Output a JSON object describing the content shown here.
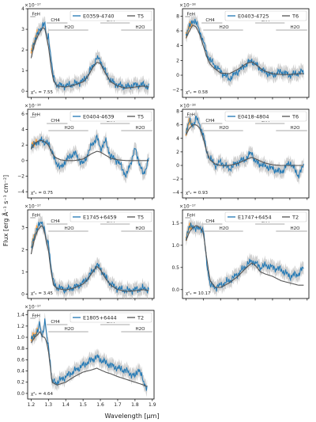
{
  "figure": {
    "xlabel": "Wavelength [μm]",
    "ylabel": "Flux [erg Å⁻¹ s⁻¹ cm⁻²]",
    "xticks": [
      "1.2",
      "1.3",
      "1.4",
      "1.5",
      "1.6",
      "1.7",
      "1.8",
      "1.9"
    ],
    "colors": {
      "observed": "#1f77b4",
      "template": "#555555",
      "error_band": "#c8c8c8",
      "overlap": "#ff9f3a"
    },
    "feature_labels": {
      "feh": "FeH",
      "ch4": "CH4",
      "h2o": "H2O"
    }
  },
  "chart_data": [
    {
      "type": "line",
      "panel": "E0359-4740",
      "multiplier": "×10⁻¹⁷",
      "ylim": [
        -0.3,
        4.0
      ],
      "yticks": [
        "0",
        "1",
        "2",
        "3",
        "4"
      ],
      "legend": {
        "object": "E0359-4740",
        "template": "T5",
        "placement": "top-right"
      },
      "chi2": "χ²ᵥ = 7.55",
      "series": [
        {
          "name": "E0359-4740",
          "x": [
            1.2,
            1.22,
            1.24,
            1.26,
            1.27,
            1.28,
            1.29,
            1.3,
            1.31,
            1.32,
            1.33,
            1.35,
            1.4,
            1.45,
            1.5,
            1.53,
            1.56,
            1.58,
            1.6,
            1.63,
            1.66,
            1.7,
            1.75,
            1.8,
            1.85,
            1.88
          ],
          "y": [
            1.8,
            2.5,
            2.8,
            3.1,
            3.3,
            3.2,
            2.5,
            2.7,
            2.0,
            1.2,
            0.6,
            0.3,
            0.25,
            0.35,
            0.5,
            0.8,
            1.3,
            1.6,
            1.5,
            0.9,
            0.5,
            0.3,
            0.2,
            0.3,
            0.3,
            0.2
          ]
        },
        {
          "name": "T5",
          "x": [
            1.2,
            1.22,
            1.24,
            1.26,
            1.27,
            1.28,
            1.29,
            1.3,
            1.31,
            1.32,
            1.33,
            1.35,
            1.4,
            1.45,
            1.5,
            1.53,
            1.56,
            1.58,
            1.6,
            1.63,
            1.66,
            1.7,
            1.75,
            1.8,
            1.85,
            1.88
          ],
          "y": [
            1.6,
            2.3,
            2.7,
            3.0,
            3.1,
            3.0,
            2.6,
            2.2,
            1.5,
            0.9,
            0.5,
            0.25,
            0.2,
            0.3,
            0.45,
            0.75,
            1.2,
            1.4,
            1.35,
            0.85,
            0.45,
            0.25,
            0.15,
            0.2,
            0.25,
            0.2
          ]
        }
      ]
    },
    {
      "type": "line",
      "panel": "E0403-4725",
      "multiplier": "×10⁻¹⁸",
      "ylim": [
        -3.0,
        9.0
      ],
      "yticks": [
        "−2",
        "0",
        "2",
        "4",
        "6",
        "8"
      ],
      "legend": {
        "object": "E0403-4725",
        "template": "T6",
        "placement": "top-right"
      },
      "chi2": "χ²ᵥ = 0.58",
      "series": [
        {
          "name": "E0403-4725",
          "x": [
            1.2,
            1.22,
            1.24,
            1.26,
            1.28,
            1.3,
            1.32,
            1.34,
            1.36,
            1.4,
            1.45,
            1.5,
            1.55,
            1.58,
            1.6,
            1.65,
            1.7,
            1.75,
            1.8,
            1.85,
            1.88
          ],
          "y": [
            5.5,
            6.5,
            7.5,
            7.0,
            6.0,
            4.5,
            3.0,
            2.0,
            1.5,
            0.5,
            -0.5,
            0.5,
            1.5,
            2.0,
            1.5,
            0.5,
            0.0,
            0.5,
            0.0,
            0.3,
            0.5
          ]
        },
        {
          "name": "T6",
          "x": [
            1.2,
            1.22,
            1.24,
            1.26,
            1.28,
            1.3,
            1.32,
            1.34,
            1.36,
            1.4,
            1.45,
            1.5,
            1.55,
            1.58,
            1.6,
            1.65,
            1.7,
            1.75,
            1.8,
            1.85,
            1.88
          ],
          "y": [
            5.0,
            6.0,
            6.8,
            6.5,
            5.5,
            4.0,
            2.5,
            1.5,
            1.0,
            0.3,
            0.2,
            0.8,
            1.6,
            1.8,
            1.5,
            0.6,
            0.2,
            0.1,
            0.1,
            0.2,
            0.2
          ]
        }
      ]
    },
    {
      "type": "line",
      "panel": "E0404-4639",
      "multiplier": "×10⁻¹⁸",
      "ylim": [
        -4.8,
        6.6
      ],
      "yticks": [
        "−4",
        "−2",
        "0",
        "2",
        "4",
        "6"
      ],
      "legend": {
        "object": "E0404-4639",
        "template": "T5",
        "placement": "top-right"
      },
      "chi2": "χ²ᵥ = 0.75",
      "series": [
        {
          "name": "E0404-4639",
          "x": [
            1.2,
            1.22,
            1.24,
            1.26,
            1.28,
            1.3,
            1.32,
            1.34,
            1.37,
            1.4,
            1.45,
            1.5,
            1.55,
            1.58,
            1.6,
            1.63,
            1.66,
            1.7,
            1.75,
            1.8,
            1.85,
            1.88
          ],
          "y": [
            1.5,
            2.5,
            2.0,
            3.0,
            2.0,
            2.5,
            1.0,
            0.0,
            -1.0,
            0.0,
            1.0,
            -0.5,
            2.0,
            3.0,
            1.5,
            2.5,
            0.5,
            0.0,
            -2.0,
            1.5,
            -2.0,
            0.5
          ]
        },
        {
          "name": "T5",
          "x": [
            1.2,
            1.22,
            1.24,
            1.26,
            1.28,
            1.3,
            1.32,
            1.34,
            1.37,
            1.4,
            1.45,
            1.5,
            1.55,
            1.58,
            1.6,
            1.63,
            1.66,
            1.7,
            1.75,
            1.8,
            1.85,
            1.88
          ],
          "y": [
            1.5,
            2.2,
            2.5,
            2.6,
            2.4,
            2.0,
            1.0,
            0.4,
            0.1,
            0.0,
            0.0,
            0.2,
            0.9,
            1.2,
            1.1,
            0.7,
            0.3,
            0.1,
            0.0,
            0.0,
            0.0,
            0.0
          ]
        }
      ]
    },
    {
      "type": "line",
      "panel": "E0418-4804",
      "multiplier": "×10⁻¹⁸",
      "ylim": [
        -4.8,
        8.3
      ],
      "yticks": [
        "−4",
        "−2",
        "0",
        "2",
        "4",
        "6",
        "8"
      ],
      "legend": {
        "object": "E0418-4804",
        "template": "T6",
        "placement": "top-right"
      },
      "chi2": "χ²ᵥ = 0.93",
      "series": [
        {
          "name": "E0418-4804",
          "x": [
            1.2,
            1.22,
            1.24,
            1.26,
            1.28,
            1.3,
            1.32,
            1.34,
            1.37,
            1.4,
            1.45,
            1.5,
            1.55,
            1.58,
            1.6,
            1.65,
            1.7,
            1.75,
            1.8,
            1.85,
            1.88
          ],
          "y": [
            5.0,
            6.5,
            6.0,
            7.0,
            6.0,
            4.5,
            2.0,
            1.0,
            0.0,
            0.5,
            -0.5,
            0.5,
            1.0,
            2.0,
            0.5,
            0.0,
            -0.5,
            -1.0,
            0.5,
            -1.5,
            0.0
          ]
        },
        {
          "name": "T6",
          "x": [
            1.2,
            1.22,
            1.24,
            1.26,
            1.28,
            1.3,
            1.32,
            1.34,
            1.37,
            1.4,
            1.45,
            1.5,
            1.55,
            1.58,
            1.6,
            1.65,
            1.7,
            1.75,
            1.8,
            1.85,
            1.88
          ],
          "y": [
            4.5,
            5.5,
            6.0,
            6.0,
            5.5,
            4.0,
            2.0,
            0.8,
            0.2,
            0.0,
            0.0,
            0.3,
            0.9,
            1.2,
            1.0,
            0.4,
            0.1,
            0.0,
            0.0,
            0.0,
            0.0
          ]
        }
      ]
    },
    {
      "type": "line",
      "panel": "E1745+6459",
      "multiplier": "×10⁻¹⁷",
      "ylim": [
        -0.2,
        3.8
      ],
      "yticks": [
        "0",
        "1",
        "2",
        "3"
      ],
      "legend": {
        "object": "E1745+6459",
        "template": "T5",
        "placement": "top-right"
      },
      "chi2": "χ²ᵥ = 3.45",
      "series": [
        {
          "name": "E1745+6459",
          "x": [
            1.2,
            1.22,
            1.24,
            1.26,
            1.27,
            1.28,
            1.29,
            1.3,
            1.31,
            1.32,
            1.33,
            1.35,
            1.4,
            1.45,
            1.5,
            1.53,
            1.56,
            1.58,
            1.6,
            1.63,
            1.66,
            1.7,
            1.75,
            1.8,
            1.85,
            1.88
          ],
          "y": [
            2.0,
            2.7,
            3.0,
            3.3,
            3.1,
            2.8,
            2.2,
            2.4,
            1.6,
            0.9,
            0.5,
            0.3,
            0.2,
            0.3,
            0.5,
            0.75,
            1.1,
            1.3,
            1.15,
            0.75,
            0.45,
            0.25,
            0.15,
            0.2,
            0.25,
            0.2
          ]
        },
        {
          "name": "T5",
          "x": [
            1.2,
            1.22,
            1.24,
            1.26,
            1.27,
            1.28,
            1.29,
            1.3,
            1.31,
            1.32,
            1.33,
            1.35,
            1.4,
            1.45,
            1.5,
            1.53,
            1.56,
            1.58,
            1.6,
            1.63,
            1.66,
            1.7,
            1.75,
            1.8,
            1.85,
            1.88
          ],
          "y": [
            1.8,
            2.5,
            2.9,
            3.1,
            3.0,
            2.7,
            2.3,
            2.0,
            1.3,
            0.8,
            0.4,
            0.25,
            0.18,
            0.28,
            0.45,
            0.7,
            1.05,
            1.25,
            1.1,
            0.7,
            0.4,
            0.2,
            0.12,
            0.15,
            0.2,
            0.15
          ]
        }
      ]
    },
    {
      "type": "line",
      "panel": "E1747+6454",
      "multiplier": "×10⁻¹⁷",
      "ylim": [
        -0.2,
        1.8
      ],
      "yticks": [
        "0.0",
        "0.5",
        "1.0",
        "1.5"
      ],
      "legend": {
        "object": "E1747+6454",
        "template": "T2",
        "placement": "top-right"
      },
      "chi2": "χ²ᵥ = 10.17",
      "series": [
        {
          "name": "E1747+6454",
          "x": [
            1.2,
            1.22,
            1.24,
            1.26,
            1.28,
            1.3,
            1.32,
            1.34,
            1.37,
            1.4,
            1.45,
            1.5,
            1.55,
            1.58,
            1.6,
            1.63,
            1.66,
            1.7,
            1.75,
            1.8,
            1.85,
            1.88
          ],
          "y": [
            1.2,
            1.4,
            1.45,
            1.35,
            1.4,
            1.35,
            0.6,
            0.1,
            0.05,
            0.1,
            0.2,
            0.35,
            0.55,
            0.65,
            0.6,
            0.5,
            0.55,
            0.5,
            0.45,
            0.3,
            0.35,
            0.5
          ]
        },
        {
          "name": "T2",
          "x": [
            1.2,
            1.22,
            1.24,
            1.26,
            1.28,
            1.3,
            1.32,
            1.34,
            1.37,
            1.4,
            1.45,
            1.5,
            1.55,
            1.58,
            1.6,
            1.63,
            1.66,
            1.7,
            1.75,
            1.8,
            1.85,
            1.88
          ],
          "y": [
            1.1,
            1.3,
            1.4,
            1.45,
            1.4,
            1.3,
            0.7,
            0.2,
            0.05,
            0.05,
            0.15,
            0.3,
            0.5,
            0.6,
            0.55,
            0.4,
            0.35,
            0.3,
            0.2,
            0.15,
            0.1,
            0.1
          ]
        }
      ]
    },
    {
      "type": "line",
      "panel": "E1805+6444",
      "multiplier": "×10⁻¹⁷",
      "ylim": [
        -0.1,
        1.48
      ],
      "yticks": [
        "0.0",
        "0.2",
        "0.4",
        "0.6",
        "0.8",
        "1.0",
        "1.2",
        "1.4"
      ],
      "legend": {
        "object": "E1805+6444",
        "template": "T2",
        "placement": "top-right"
      },
      "chi2": "χ²ᵥ = 4.64",
      "series": [
        {
          "name": "E1805+6444",
          "x": [
            1.2,
            1.22,
            1.24,
            1.25,
            1.26,
            1.27,
            1.28,
            1.29,
            1.3,
            1.31,
            1.32,
            1.35,
            1.4,
            1.45,
            1.5,
            1.55,
            1.58,
            1.6,
            1.63,
            1.66,
            1.7,
            1.75,
            1.8,
            1.82,
            1.85,
            1.87
          ],
          "y": [
            0.95,
            1.05,
            1.1,
            1.25,
            1.05,
            1.1,
            1.3,
            1.0,
            0.85,
            0.6,
            0.2,
            0.2,
            0.3,
            0.4,
            0.5,
            0.6,
            0.65,
            0.6,
            0.55,
            0.5,
            0.45,
            0.4,
            0.3,
            0.45,
            0.2,
            0.1
          ]
        },
        {
          "name": "T2",
          "x": [
            1.2,
            1.22,
            1.24,
            1.25,
            1.26,
            1.27,
            1.28,
            1.29,
            1.3,
            1.31,
            1.32,
            1.35,
            1.4,
            1.45,
            1.5,
            1.55,
            1.58,
            1.6,
            1.63,
            1.66,
            1.7,
            1.75,
            1.8,
            1.82,
            1.85,
            1.87
          ],
          "y": [
            0.9,
            1.0,
            1.05,
            1.1,
            1.05,
            1.0,
            1.0,
            0.9,
            0.75,
            0.5,
            0.2,
            0.15,
            0.2,
            0.3,
            0.38,
            0.42,
            0.45,
            0.42,
            0.38,
            0.35,
            0.3,
            0.25,
            0.2,
            0.18,
            0.15,
            0.12
          ]
        }
      ]
    }
  ]
}
